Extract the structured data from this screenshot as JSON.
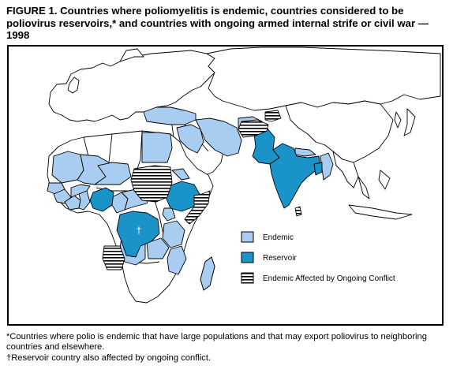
{
  "figure": {
    "title": "FIGURE 1. Countries where poliomyelitis is endemic, countries considered to be poliovirus reservoirs,* and countries with ongoing armed internal strife or civil war — 1998"
  },
  "map": {
    "dagger_symbol": "†",
    "legend": [
      {
        "key": "endemic",
        "label": "Endemic",
        "color": "#a8cdf0"
      },
      {
        "key": "reservoir",
        "label": "Reservoir",
        "color": "#1a93c8"
      },
      {
        "key": "conflict",
        "label": "Endemic Affected by Ongoing Conflict",
        "pattern": "horizontal-stripes"
      }
    ]
  },
  "footnotes": {
    "asterisk": "*Countries where polio is endemic that have large populations and that may export poliovirus to neighboring countries and elsewhere.",
    "dagger": "†Reservoir country also affected by ongoing conflict."
  },
  "colors": {
    "endemic": "#a8cdf0",
    "reservoir": "#1a93c8",
    "stripe": "#000000",
    "border": "#000000"
  }
}
